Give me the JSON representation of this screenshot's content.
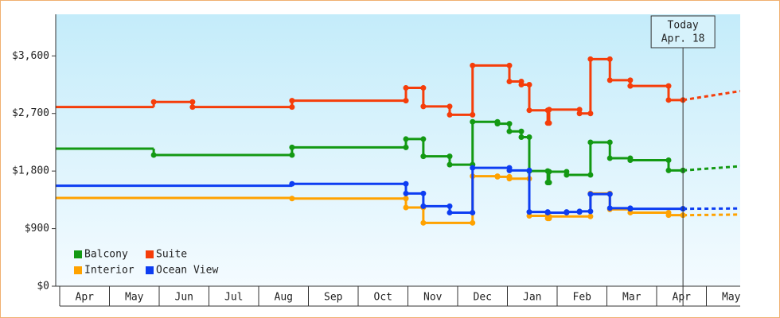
{
  "chart_data": {
    "type": "step-line",
    "xlim": [
      -0.08,
      13.68
    ],
    "ylim": [
      0,
      4250
    ],
    "yticks": [
      {
        "value": 0,
        "label": "$0"
      },
      {
        "value": 900,
        "label": "$900"
      },
      {
        "value": 1800,
        "label": "$1,800"
      },
      {
        "value": 2700,
        "label": "$2,700"
      },
      {
        "value": 3600,
        "label": "$3,600"
      }
    ],
    "categories": [
      "Apr",
      "May",
      "Jun",
      "Jul",
      "Aug",
      "Sep",
      "Oct",
      "Nov",
      "Dec",
      "Jan",
      "Feb",
      "Mar",
      "Apr",
      "May"
    ],
    "today": {
      "x": 12.53,
      "label": [
        "Today",
        "Apr. 18"
      ]
    },
    "forecast_x": [
      12.53,
      13.68
    ],
    "series": [
      {
        "name": "Balcony",
        "color": "#139913",
        "x": [
          -0.08,
          1.89,
          4.67,
          6.96,
          7.31,
          7.84,
          8.3,
          8.8,
          9.04,
          9.28,
          9.44,
          9.81,
          9.84,
          10.19,
          10.67,
          11.06,
          11.47,
          12.24,
          12.53
        ],
        "values": [
          2150,
          2050,
          2170,
          2300,
          2030,
          1900,
          2570,
          2540,
          2420,
          2330,
          1800,
          1620,
          1790,
          1740,
          2250,
          2000,
          1970,
          1810,
          1810
        ],
        "forecast": [
          1810,
          1875
        ]
      },
      {
        "name": "Suite",
        "color": "#f53d0a",
        "x": [
          -0.08,
          1.89,
          2.67,
          4.67,
          6.96,
          7.31,
          7.84,
          8.3,
          9.04,
          9.28,
          9.44,
          9.81,
          9.84,
          10.45,
          10.67,
          11.06,
          11.47,
          12.24,
          12.53
        ],
        "values": [
          2800,
          2880,
          2800,
          2900,
          3100,
          2810,
          2680,
          3450,
          3200,
          3150,
          2750,
          2550,
          2760,
          2700,
          3550,
          3220,
          3130,
          2910,
          2910
        ],
        "forecast": [
          2910,
          3050
        ]
      },
      {
        "name": "Interior",
        "color": "#ffa200",
        "x": [
          -0.08,
          4.67,
          6.96,
          7.31,
          8.3,
          8.8,
          9.04,
          9.44,
          9.81,
          9.84,
          10.67,
          11.06,
          11.47,
          12.24,
          12.53
        ],
        "values": [
          1380,
          1370,
          1230,
          990,
          1720,
          1710,
          1680,
          1100,
          1060,
          1090,
          1450,
          1200,
          1150,
          1110,
          1110
        ],
        "forecast": [
          1110,
          1120
        ]
      },
      {
        "name": "Ocean View",
        "color": "#0d3df2",
        "x": [
          -0.08,
          4.67,
          6.96,
          7.31,
          7.84,
          8.3,
          9.04,
          9.44,
          9.81,
          10.19,
          10.45,
          10.67,
          11.06,
          11.47,
          12.53
        ],
        "values": [
          1570,
          1600,
          1450,
          1250,
          1150,
          1850,
          1810,
          1160,
          1150,
          1160,
          1170,
          1440,
          1220,
          1210,
          1210
        ],
        "forecast": [
          1210,
          1215
        ]
      }
    ]
  }
}
